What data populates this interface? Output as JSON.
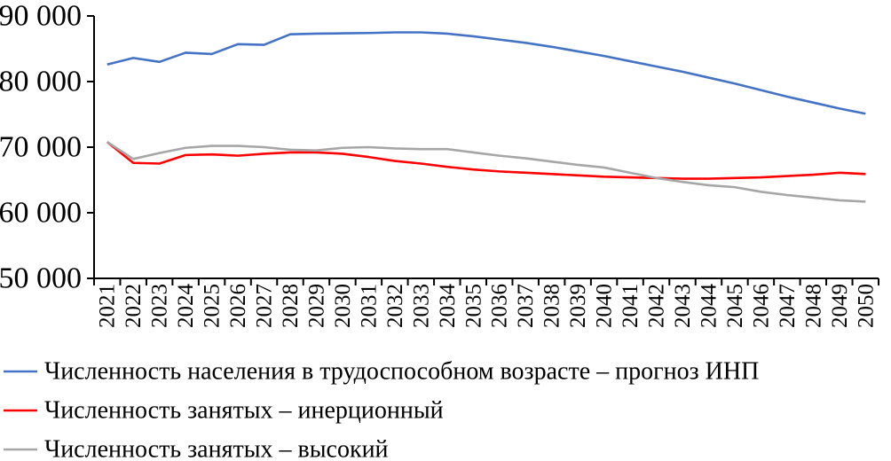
{
  "chart_data": {
    "type": "line",
    "title": "",
    "xlabel": "",
    "ylabel": "",
    "ylim": [
      50000,
      90000
    ],
    "yticks": [
      50000,
      60000,
      70000,
      80000,
      90000
    ],
    "ytick_labels": [
      "50 000",
      "60 000",
      "70 000",
      "80 000",
      "90 000"
    ],
    "x": [
      "2021",
      "2022",
      "2023",
      "2024",
      "2025",
      "2026",
      "2027",
      "2028",
      "2029",
      "2030",
      "2031",
      "2032",
      "2033",
      "2034",
      "2035",
      "2036",
      "2037",
      "2038",
      "2039",
      "2040",
      "2041",
      "2042",
      "2043",
      "2044",
      "2045",
      "2046",
      "2047",
      "2048",
      "2049",
      "2050"
    ],
    "grid": false,
    "legend_position": "bottom",
    "series": [
      {
        "name": "Численность населения в трудоспособном возрасте – прогноз ИНП",
        "color": "#4472C4",
        "values": [
          82600,
          83600,
          83000,
          84400,
          84200,
          85700,
          85600,
          87200,
          87300,
          87350,
          87400,
          87500,
          87500,
          87300,
          86900,
          86400,
          85900,
          85300,
          84600,
          83900,
          83100,
          82300,
          81500,
          80600,
          79700,
          78700,
          77700,
          76800,
          75900,
          75100
        ]
      },
      {
        "name": "Численность занятых – инерционный",
        "color": "#FF0000",
        "values": [
          70800,
          67600,
          67500,
          68800,
          68900,
          68700,
          69000,
          69200,
          69200,
          69000,
          68500,
          67900,
          67500,
          67000,
          66600,
          66300,
          66100,
          65900,
          65700,
          65500,
          65400,
          65300,
          65200,
          65200,
          65300,
          65400,
          65600,
          65800,
          66100,
          65900
        ]
      },
      {
        "name": "Численность занятых – высокий",
        "color": "#A6A6A6",
        "values": [
          70800,
          68200,
          69100,
          69900,
          70200,
          70200,
          70000,
          69600,
          69500,
          69900,
          70000,
          69800,
          69700,
          69700,
          69200,
          68700,
          68300,
          67800,
          67300,
          66900,
          66100,
          65300,
          64700,
          64200,
          63900,
          63200,
          62700,
          62300,
          61900,
          61700
        ]
      }
    ]
  }
}
